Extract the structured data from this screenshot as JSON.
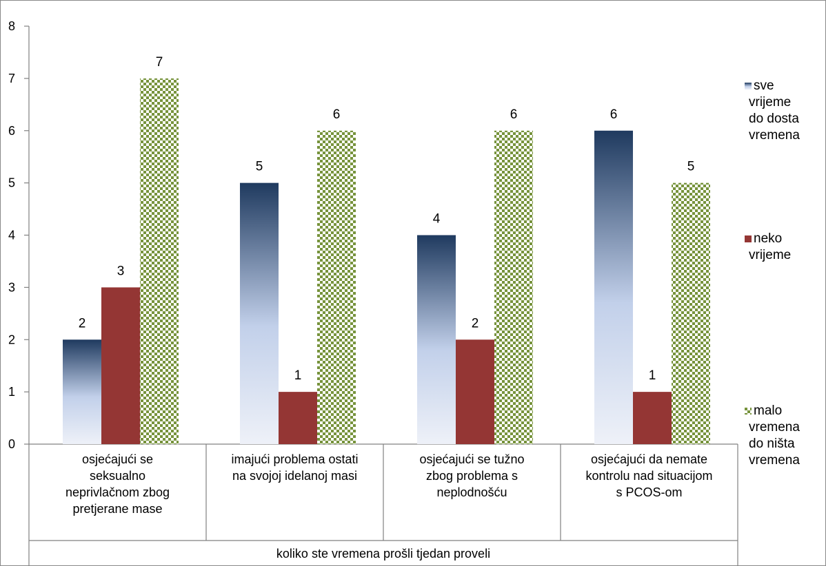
{
  "chart_data": {
    "type": "bar",
    "title": "",
    "xlabel": "koliko ste vremena prošli tjedan proveli",
    "ylabel": "",
    "ylim": [
      0,
      8
    ],
    "yticks": [
      0,
      1,
      2,
      3,
      4,
      5,
      6,
      7,
      8
    ],
    "grid": false,
    "legend_position": "right",
    "categories": [
      [
        "osjećajući se",
        "seksualno",
        "neprivlačnom zbog",
        "pretjerane mase"
      ],
      [
        "imajući problema ostati",
        "na svojoj idelanoj masi"
      ],
      [
        "osjećajući se tužno",
        "zbog problema s",
        "neplodnošću"
      ],
      [
        "osjećajući da nemate",
        "kontrolu nad situacijom",
        "s PCOS-om"
      ]
    ],
    "series": [
      {
        "name": [
          "sve",
          "vrijeme",
          "do dosta",
          "vremena"
        ],
        "values": [
          2,
          5,
          4,
          6
        ],
        "fill": "gradient-blue"
      },
      {
        "name": [
          "neko",
          "vrijeme"
        ],
        "values": [
          3,
          1,
          2,
          1
        ],
        "fill": "#943634"
      },
      {
        "name": [
          "malo",
          "vremena",
          "do ništa",
          "vremena"
        ],
        "values": [
          7,
          6,
          6,
          5
        ],
        "fill": "pattern-green"
      }
    ],
    "colors": {
      "blue_top": "#1f3a5f",
      "blue_bottom": "#e6ecf7",
      "red": "#943634",
      "green": "#77933c"
    }
  }
}
